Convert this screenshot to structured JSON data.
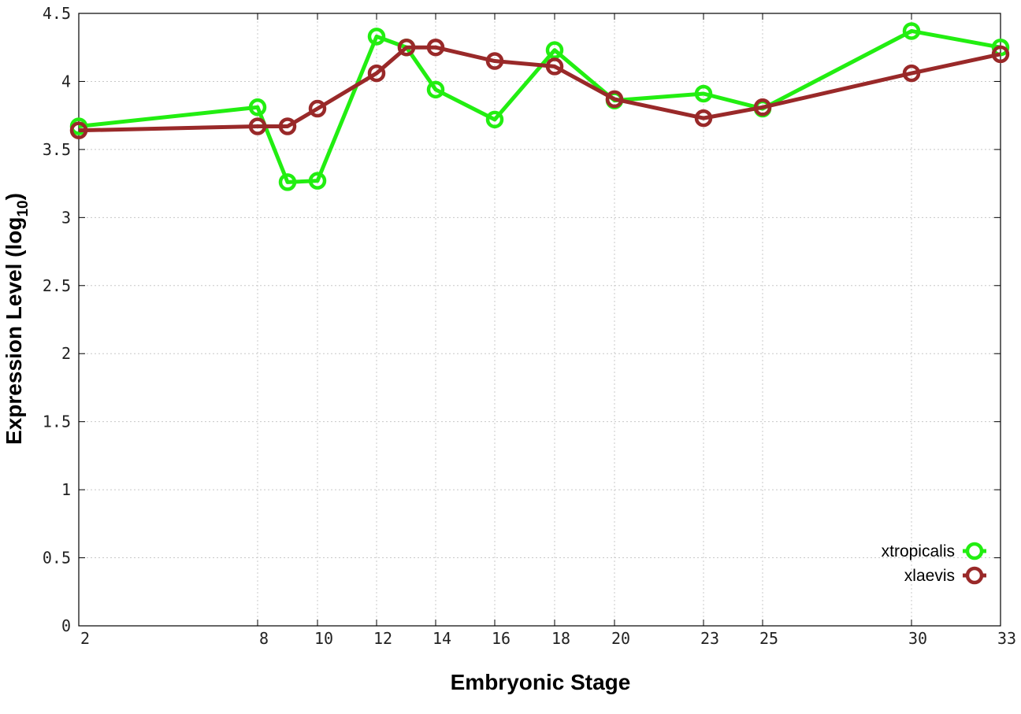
{
  "chart_data": {
    "type": "line",
    "xlabel": "Embryonic Stage",
    "ylabel_main": "Expression Level (log",
    "ylabel_sub": "10",
    "ylabel_close": ")",
    "ylim": [
      0,
      4.5
    ],
    "y_ticks": [
      "0",
      "0.5",
      "1",
      "1.5",
      "2",
      "2.5",
      "3",
      "3.5",
      "4",
      "4.5"
    ],
    "x_ticks": [
      "2",
      "8",
      "10",
      "12",
      "14",
      "16",
      "18",
      "20",
      "23",
      "25",
      "30",
      "33"
    ],
    "grid": true,
    "legend_position": "bottom-right",
    "series": [
      {
        "name": "xtropicalis",
        "color": "#22ee11",
        "points": [
          {
            "x": "2",
            "y": 3.67
          },
          {
            "x": "8",
            "y": 3.81
          },
          {
            "x": "9",
            "y": 3.26
          },
          {
            "x": "10",
            "y": 3.27
          },
          {
            "x": "12",
            "y": 4.33
          },
          {
            "x": "13",
            "y": 4.25
          },
          {
            "x": "14",
            "y": 3.94
          },
          {
            "x": "16",
            "y": 3.72
          },
          {
            "x": "18",
            "y": 4.23
          },
          {
            "x": "20",
            "y": 3.86
          },
          {
            "x": "23",
            "y": 3.91
          },
          {
            "x": "25",
            "y": 3.8
          },
          {
            "x": "30",
            "y": 4.37
          },
          {
            "x": "33",
            "y": 4.25
          }
        ]
      },
      {
        "name": "xlaevis",
        "color": "#992929",
        "points": [
          {
            "x": "2",
            "y": 3.64
          },
          {
            "x": "8",
            "y": 3.67
          },
          {
            "x": "9",
            "y": 3.67
          },
          {
            "x": "10",
            "y": 3.8
          },
          {
            "x": "12",
            "y": 4.06
          },
          {
            "x": "13",
            "y": 4.25
          },
          {
            "x": "14",
            "y": 4.25
          },
          {
            "x": "16",
            "y": 4.15
          },
          {
            "x": "18",
            "y": 4.11
          },
          {
            "x": "20",
            "y": 3.87
          },
          {
            "x": "23",
            "y": 3.73
          },
          {
            "x": "25",
            "y": 3.81
          },
          {
            "x": "30",
            "y": 4.06
          },
          {
            "x": "33",
            "y": 4.2
          }
        ]
      }
    ]
  }
}
